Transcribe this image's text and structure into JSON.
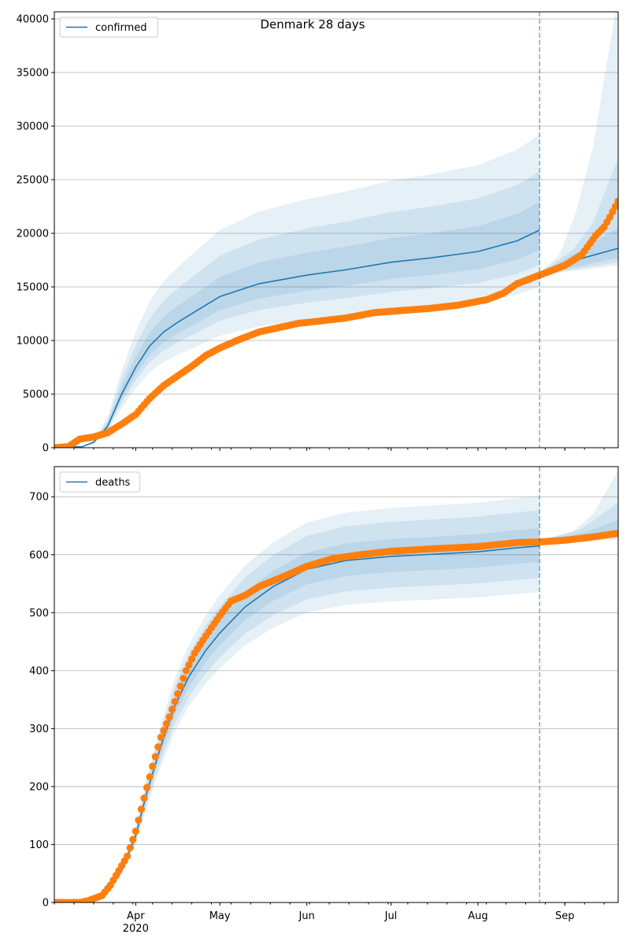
{
  "title": "Denmark 28 days",
  "colors": {
    "model": "#1f77b4",
    "observed": "#ff7f0e",
    "grid": "#b0b0b0"
  },
  "chart_data": [
    {
      "type": "line",
      "name": "confirmed",
      "legend": "confirmed",
      "legend_position": "top-left",
      "x_origin": "2020-03-03",
      "x_unit": "days since x_origin",
      "xlim": [
        0,
        201
      ],
      "ylim": [
        0,
        40660
      ],
      "yticks": [
        0,
        5000,
        10000,
        15000,
        20000,
        25000,
        30000,
        35000,
        40000
      ],
      "grid": "horizontal",
      "forecast_start_day": 173,
      "observed": [
        [
          0,
          0
        ],
        [
          5,
          100
        ],
        [
          9,
          800
        ],
        [
          14,
          1000
        ],
        [
          19,
          1400
        ],
        [
          24,
          2200
        ],
        [
          29,
          3100
        ],
        [
          34,
          4600
        ],
        [
          39,
          5800
        ],
        [
          44,
          6700
        ],
        [
          49,
          7600
        ],
        [
          54,
          8600
        ],
        [
          59,
          9300
        ],
        [
          66,
          10100
        ],
        [
          73,
          10800
        ],
        [
          80,
          11200
        ],
        [
          87,
          11600
        ],
        [
          94,
          11800
        ],
        [
          104,
          12100
        ],
        [
          114,
          12600
        ],
        [
          124,
          12800
        ],
        [
          134,
          13000
        ],
        [
          144,
          13300
        ],
        [
          154,
          13800
        ],
        [
          160,
          14400
        ],
        [
          165,
          15300
        ],
        [
          173,
          16100
        ],
        [
          182,
          17000
        ],
        [
          188,
          18000
        ],
        [
          193,
          19800
        ],
        [
          196,
          20600
        ],
        [
          198,
          21500
        ],
        [
          201,
          23000
        ]
      ],
      "model_median": [
        [
          0,
          0
        ],
        [
          10,
          100
        ],
        [
          14,
          500
        ],
        [
          19,
          2000
        ],
        [
          24,
          5000
        ],
        [
          29,
          7500
        ],
        [
          34,
          9500
        ],
        [
          39,
          10800
        ],
        [
          44,
          11700
        ],
        [
          54,
          13300
        ],
        [
          59,
          14100
        ],
        [
          73,
          15300
        ],
        [
          90,
          16100
        ],
        [
          104,
          16600
        ],
        [
          120,
          17300
        ],
        [
          134,
          17700
        ],
        [
          151,
          18300
        ],
        [
          165,
          19300
        ],
        [
          173,
          20300
        ]
      ],
      "model_band_ratios": [
        {
          "upper": 1.44,
          "lower": 0.74
        },
        {
          "upper": 1.27,
          "lower": 0.84
        },
        {
          "upper": 1.13,
          "lower": 0.91
        }
      ],
      "forecast_median": [
        [
          173,
          16200
        ],
        [
          182,
          17200
        ],
        [
          190,
          17800
        ],
        [
          201,
          18600
        ]
      ],
      "forecast_bands": [
        {
          "upper": [
            [
              173,
              16300
            ],
            [
              180,
              18000
            ],
            [
              186,
              22000
            ],
            [
              192,
              28000
            ],
            [
              197,
              36000
            ],
            [
              201,
              42000
            ]
          ],
          "lower": [
            [
              173,
              16100
            ],
            [
              201,
              17000
            ]
          ]
        },
        {
          "upper": [
            [
              173,
              16300
            ],
            [
              185,
              18500
            ],
            [
              192,
              21000
            ],
            [
              201,
              27000
            ]
          ],
          "lower": [
            [
              173,
              16150
            ],
            [
              201,
              17300
            ]
          ]
        },
        {
          "upper": [
            [
              173,
              16250
            ],
            [
              190,
              18800
            ],
            [
              201,
              20500
            ]
          ],
          "lower": [
            [
              173,
              16180
            ],
            [
              201,
              17700
            ]
          ]
        }
      ]
    },
    {
      "type": "line",
      "name": "deaths",
      "legend": "deaths",
      "legend_position": "top-left",
      "x_origin": "2020-03-03",
      "x_unit": "days since x_origin",
      "xlim": [
        0,
        201
      ],
      "ylim": [
        0,
        752
      ],
      "yticks": [
        0,
        100,
        200,
        300,
        400,
        500,
        600,
        700
      ],
      "grid": "horizontal",
      "forecast_start_day": 173,
      "xticks_major": [
        {
          "day": 29,
          "label": "Apr",
          "sublabel": "2020"
        },
        {
          "day": 59,
          "label": "May"
        },
        {
          "day": 90,
          "label": "Jun"
        },
        {
          "day": 120,
          "label": "Jul"
        },
        {
          "day": 151,
          "label": "Aug"
        },
        {
          "day": 182,
          "label": "Sep"
        }
      ],
      "observed": [
        [
          0,
          0
        ],
        [
          9,
          0
        ],
        [
          12,
          3
        ],
        [
          17,
          12
        ],
        [
          20,
          30
        ],
        [
          23,
          55
        ],
        [
          26,
          80
        ],
        [
          29,
          123
        ],
        [
          32,
          180
        ],
        [
          35,
          235
        ],
        [
          38,
          285
        ],
        [
          41,
          320
        ],
        [
          44,
          360
        ],
        [
          47,
          400
        ],
        [
          50,
          430
        ],
        [
          54,
          460
        ],
        [
          59,
          495
        ],
        [
          63,
          520
        ],
        [
          68,
          530
        ],
        [
          73,
          545
        ],
        [
          78,
          555
        ],
        [
          83,
          565
        ],
        [
          90,
          580
        ],
        [
          99,
          593
        ],
        [
          109,
          600
        ],
        [
          120,
          606
        ],
        [
          134,
          610
        ],
        [
          151,
          614
        ],
        [
          165,
          621
        ],
        [
          173,
          622
        ],
        [
          182,
          625
        ],
        [
          191,
          630
        ],
        [
          201,
          637
        ]
      ],
      "model_median": [
        [
          0,
          0
        ],
        [
          14,
          5
        ],
        [
          20,
          25
        ],
        [
          24,
          55
        ],
        [
          29,
          115
        ],
        [
          33,
          190
        ],
        [
          38,
          270
        ],
        [
          43,
          340
        ],
        [
          48,
          390
        ],
        [
          54,
          435
        ],
        [
          59,
          465
        ],
        [
          68,
          510
        ],
        [
          78,
          545
        ],
        [
          90,
          575
        ],
        [
          104,
          590
        ],
        [
          120,
          597
        ],
        [
          151,
          605
        ],
        [
          165,
          612
        ],
        [
          173,
          615
        ]
      ],
      "model_band_ratios": [
        {
          "upper": 1.14,
          "lower": 0.87
        },
        {
          "upper": 1.1,
          "lower": 0.91
        },
        {
          "upper": 1.05,
          "lower": 0.955
        }
      ],
      "forecast_median": [
        [
          173,
          622
        ],
        [
          201,
          640
        ]
      ],
      "forecast_bands": [
        {
          "upper": [
            [
              173,
              625
            ],
            [
              185,
              640
            ],
            [
              192,
              670
            ],
            [
              201,
              745
            ]
          ],
          "lower": [
            [
              173,
              621
            ],
            [
              201,
              626
            ]
          ]
        },
        {
          "upper": [
            [
              173,
              624
            ],
            [
              188,
              645
            ],
            [
              201,
              690
            ]
          ],
          "lower": [
            [
              173,
              621
            ],
            [
              201,
              630
            ]
          ]
        },
        {
          "upper": [
            [
              173,
              623
            ],
            [
              190,
              640
            ],
            [
              201,
              660
            ]
          ],
          "lower": [
            [
              173,
              622
            ],
            [
              201,
              633
            ]
          ]
        }
      ]
    }
  ]
}
